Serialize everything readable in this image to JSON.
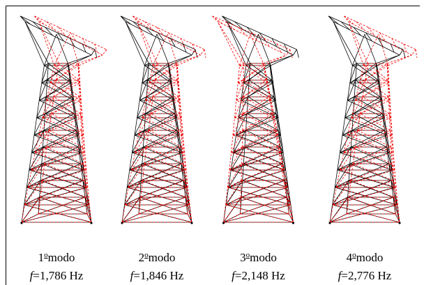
{
  "panels": [
    {
      "number": "1",
      "sup": "o",
      "word": "modo",
      "symbol": "f",
      "value": "=1,786 Hz"
    },
    {
      "number": "2",
      "sup": "o",
      "word": "modo",
      "symbol": "f",
      "value": "=1,846 Hz"
    },
    {
      "number": "3",
      "sup": "o",
      "word": "modo",
      "symbol": "f",
      "value": "=2,148 Hz"
    },
    {
      "number": "4",
      "sup": "o",
      "word": "modo",
      "symbol": "f",
      "value": "=2,776 Hz"
    }
  ]
}
